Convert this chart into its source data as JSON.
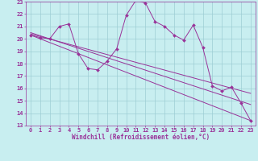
{
  "xlabel": "Windchill (Refroidissement éolien,°C)",
  "bg_color": "#c8eef0",
  "grid_color": "#9dcdd4",
  "line_color": "#993399",
  "xlim": [
    -0.5,
    23.5
  ],
  "ylim": [
    13,
    23
  ],
  "xticks": [
    0,
    1,
    2,
    3,
    4,
    5,
    6,
    7,
    8,
    9,
    10,
    11,
    12,
    13,
    14,
    15,
    16,
    17,
    18,
    19,
    20,
    21,
    22,
    23
  ],
  "yticks": [
    13,
    14,
    15,
    16,
    17,
    18,
    19,
    20,
    21,
    22,
    23
  ],
  "data_y": [
    20.3,
    20.1,
    20.0,
    21.0,
    21.2,
    18.8,
    17.6,
    17.5,
    18.2,
    19.2,
    21.9,
    23.1,
    22.9,
    21.4,
    21.0,
    20.3,
    19.9,
    21.1,
    19.3,
    16.2,
    15.8,
    16.1,
    14.8,
    13.4
  ],
  "reg_lines": [
    {
      "x0": 0,
      "y0": 20.4,
      "x1": 23,
      "y1": 15.6
    },
    {
      "x0": 0,
      "y0": 20.5,
      "x1": 23,
      "y1": 14.7
    },
    {
      "x0": 0,
      "y0": 20.3,
      "x1": 23,
      "y1": 13.4
    }
  ],
  "font_color": "#993399",
  "tick_fontsize": 5.0,
  "xlabel_fontsize": 5.5,
  "label_fontweight": "bold"
}
